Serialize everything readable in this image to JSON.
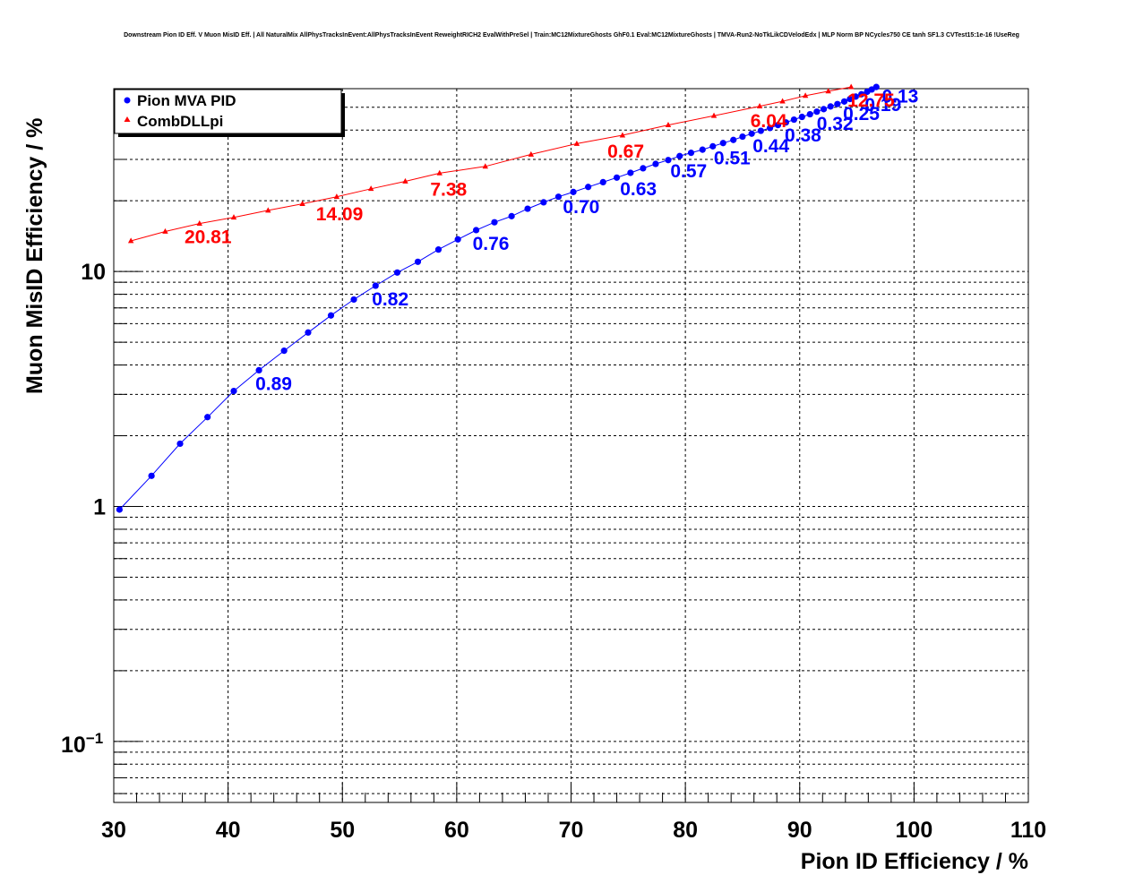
{
  "chart_data": {
    "type": "scatter",
    "title": "Downstream Pion ID Eff. V Muon MisID Eff. | All NaturalMix AllPhysTracksInEvent:AllPhysTracksInEvent ReweightRICH2 EvalWithPreSel | Train:MC12MixtureGhosts GhF0.1 Eval:MC12MixtureGhosts | TMVA-Run2-NoTkLikCDVelodEdx | MLP Norm BP NCycles750 CE tanh SF1.3 CVTest15:1e-16 !UseReg",
    "xlabel": "Pion ID Efficiency / %",
    "ylabel": "Muon MisID Efficiency / %",
    "xlim": [
      30,
      110
    ],
    "ylim": [
      0.055,
      60
    ],
    "log_y": true,
    "grid": true,
    "x_ticks": [
      "30",
      "40",
      "50",
      "60",
      "70",
      "80",
      "90",
      "100",
      "110"
    ],
    "y_ticks": [
      {
        "value": 1,
        "label": "1"
      },
      {
        "value": 10,
        "label": "10"
      }
    ],
    "y_tick_minus_one": {
      "value": 0.1,
      "base": "10",
      "exponent": "−1"
    },
    "legend": {
      "placement": "top-left"
    },
    "series": [
      {
        "name": "Pion MVA PID",
        "color": "#0000ff",
        "marker": "circle",
        "points": [
          [
            30.5,
            0.97
          ],
          [
            33.3,
            1.35
          ],
          [
            35.8,
            1.85
          ],
          [
            38.2,
            2.4
          ],
          [
            40.5,
            3.1
          ],
          [
            42.7,
            3.8
          ],
          [
            44.9,
            4.6
          ],
          [
            47.0,
            5.5
          ],
          [
            49.0,
            6.5
          ],
          [
            51.0,
            7.6
          ],
          [
            52.9,
            8.7
          ],
          [
            54.8,
            9.9
          ],
          [
            56.6,
            11.0
          ],
          [
            58.4,
            12.4
          ],
          [
            60.1,
            13.7
          ],
          [
            61.7,
            15.0
          ],
          [
            63.3,
            16.2
          ],
          [
            64.8,
            17.2
          ],
          [
            66.2,
            18.5
          ],
          [
            67.6,
            19.7
          ],
          [
            68.9,
            20.8
          ],
          [
            70.2,
            21.8
          ],
          [
            71.5,
            22.9
          ],
          [
            72.8,
            24.0
          ],
          [
            74.0,
            25.1
          ],
          [
            75.2,
            26.3
          ],
          [
            76.3,
            27.5
          ],
          [
            77.4,
            28.7
          ],
          [
            78.5,
            29.8
          ],
          [
            79.5,
            31.0
          ],
          [
            80.5,
            32.0
          ],
          [
            81.5,
            33.0
          ],
          [
            82.4,
            34.1
          ],
          [
            83.3,
            35.2
          ],
          [
            84.2,
            36.3
          ],
          [
            85.0,
            37.5
          ],
          [
            85.8,
            38.6
          ],
          [
            86.6,
            39.7
          ],
          [
            87.4,
            40.8
          ],
          [
            88.1,
            42.0
          ],
          [
            88.8,
            43.1
          ],
          [
            89.5,
            44.3
          ],
          [
            90.2,
            45.5
          ],
          [
            90.9,
            46.7
          ],
          [
            91.5,
            47.9
          ],
          [
            92.1,
            49.1
          ],
          [
            92.7,
            50.4
          ],
          [
            93.3,
            51.6
          ],
          [
            93.9,
            52.9
          ],
          [
            94.4,
            54.2
          ],
          [
            94.9,
            55.5
          ],
          [
            95.4,
            56.8
          ],
          [
            95.9,
            58.2
          ],
          [
            96.3,
            59.5
          ],
          [
            96.7,
            61.0
          ]
        ],
        "annotations": [
          {
            "x": 42.7,
            "y": 3.8,
            "text": "0.89"
          },
          {
            "x": 52.9,
            "y": 8.7,
            "text": "0.82"
          },
          {
            "x": 61.7,
            "y": 15.0,
            "text": "0.76"
          },
          {
            "x": 69.6,
            "y": 21.5,
            "text": "0.70"
          },
          {
            "x": 74.6,
            "y": 25.6,
            "text": "0.63"
          },
          {
            "x": 79.0,
            "y": 30.5,
            "text": "0.57"
          },
          {
            "x": 82.8,
            "y": 34.6,
            "text": "0.51"
          },
          {
            "x": 86.2,
            "y": 39.1,
            "text": "0.44"
          },
          {
            "x": 89.0,
            "y": 43.4,
            "text": "0.38"
          },
          {
            "x": 91.8,
            "y": 48.5,
            "text": "0.32"
          },
          {
            "x": 94.1,
            "y": 53.6,
            "text": "0.25"
          },
          {
            "x": 96.0,
            "y": 58.5,
            "text": "0.19"
          },
          {
            "x": 97.5,
            "y": 63.5,
            "text": "0.13"
          }
        ]
      },
      {
        "name": "CombDLLpi",
        "color": "#ff0000",
        "marker": "triangle",
        "points": [
          [
            31.5,
            13.5
          ],
          [
            34.5,
            14.8
          ],
          [
            37.5,
            16.0
          ],
          [
            40.5,
            17.0
          ],
          [
            43.5,
            18.2
          ],
          [
            46.5,
            19.4
          ],
          [
            49.5,
            20.8
          ],
          [
            52.5,
            22.5
          ],
          [
            55.5,
            24.2
          ],
          [
            58.5,
            26.2
          ],
          [
            62.5,
            28.0
          ],
          [
            66.5,
            31.5
          ],
          [
            70.5,
            35.0
          ],
          [
            74.5,
            38.0
          ],
          [
            78.5,
            42.0
          ],
          [
            82.5,
            46.0
          ],
          [
            86.5,
            50.5
          ],
          [
            88.5,
            53.0
          ],
          [
            90.5,
            56.0
          ],
          [
            92.5,
            58.5
          ],
          [
            94.5,
            61.0
          ]
        ],
        "annotations": [
          {
            "x": 36.5,
            "y": 16.0,
            "text": "20.81"
          },
          {
            "x": 48.0,
            "y": 20.0,
            "text": "14.09"
          },
          {
            "x": 58.0,
            "y": 25.5,
            "text": "7.38"
          },
          {
            "x": 73.5,
            "y": 37.0,
            "text": "0.67"
          },
          {
            "x": 86.0,
            "y": 50.0,
            "text": "6.04"
          },
          {
            "x": 94.5,
            "y": 61.0,
            "text": "12.75"
          }
        ]
      }
    ]
  }
}
